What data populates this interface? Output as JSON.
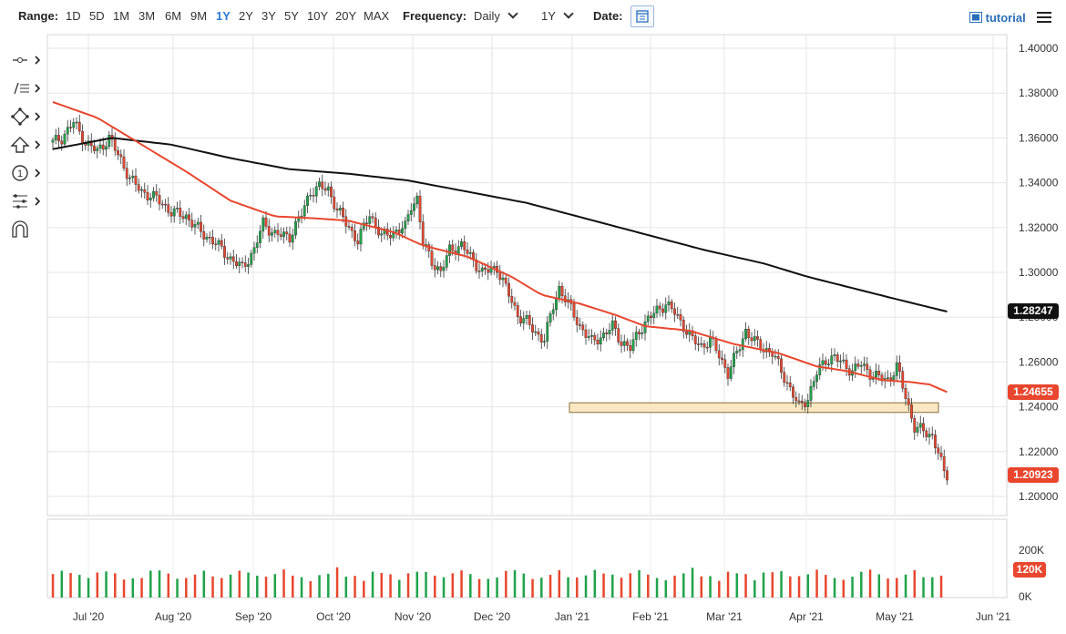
{
  "toolbar": {
    "range_label": "Range:",
    "ranges": [
      "1D",
      "5D",
      "1M",
      "3M",
      "6M",
      "9M",
      "1Y",
      "2Y",
      "3Y",
      "5Y",
      "10Y",
      "20Y",
      "MAX"
    ],
    "active_range": "1Y",
    "frequency_label": "Frequency:",
    "frequency_value": "Daily",
    "period_value": "1Y",
    "date_label": "Date:",
    "tutorial_label": "tutorial"
  },
  "sidebar": {
    "tools": [
      "crosshair-tool",
      "trend-line-tool",
      "shape-tool",
      "arrow-tool",
      "annotation-tool",
      "fibonacci-tool",
      "magnet-tool"
    ]
  },
  "colors": {
    "up": "#1fa34a",
    "down": "#e8462e",
    "ma50": "#e8462e",
    "ma200": "#111111",
    "zone_fill": "#fbe8c2",
    "zone_stroke": "#8a6d3b"
  },
  "price_boxes": {
    "ma200": "1.28247",
    "ma50": "1.24655",
    "last": "1.20923",
    "volume": "120K"
  },
  "chart_data": {
    "type": "candlestick",
    "x_labels": [
      "Jul '20",
      "Aug '20",
      "Sep '20",
      "Oct '20",
      "Nov '20",
      "Dec '20",
      "Jan '21",
      "Feb '21",
      "Mar '21",
      "Apr '21",
      "May '21",
      "Jun '21"
    ],
    "y_ticks": [
      "1.40000",
      "1.38000",
      "1.36000",
      "1.34000",
      "1.32000",
      "1.30000",
      "1.28000",
      "1.26000",
      "1.24000",
      "1.22000",
      "1.20000"
    ],
    "ylim": [
      1.2,
      1.4
    ],
    "volume_ticks": [
      "200K",
      "0K"
    ],
    "zone": [
      1.2375,
      1.2418
    ],
    "close_anchors": [
      [
        0,
        1.358
      ],
      [
        3,
        1.36
      ],
      [
        7,
        1.367
      ],
      [
        11,
        1.358
      ],
      [
        15,
        1.354
      ],
      [
        19,
        1.36
      ],
      [
        23,
        1.35
      ],
      [
        26,
        1.342
      ],
      [
        30,
        1.336
      ],
      [
        35,
        1.333
      ],
      [
        40,
        1.327
      ],
      [
        45,
        1.325
      ],
      [
        50,
        1.318
      ],
      [
        55,
        1.313
      ],
      [
        60,
        1.306
      ],
      [
        64,
        1.302
      ],
      [
        68,
        1.31
      ],
      [
        71,
        1.322
      ],
      [
        75,
        1.317
      ],
      [
        80,
        1.316
      ],
      [
        84,
        1.326
      ],
      [
        87,
        1.336
      ],
      [
        90,
        1.338
      ],
      [
        93,
        1.337
      ],
      [
        96,
        1.328
      ],
      [
        99,
        1.322
      ],
      [
        103,
        1.314
      ],
      [
        107,
        1.326
      ],
      [
        111,
        1.316
      ],
      [
        115,
        1.318
      ],
      [
        119,
        1.32
      ],
      [
        121,
        1.33
      ],
      [
        123,
        1.333
      ],
      [
        125,
        1.313
      ],
      [
        128,
        1.305
      ],
      [
        131,
        1.3
      ],
      [
        134,
        1.31
      ],
      [
        138,
        1.312
      ],
      [
        141,
        1.307
      ],
      [
        145,
        1.3
      ],
      [
        150,
        1.302
      ],
      [
        154,
        1.29
      ],
      [
        157,
        1.281
      ],
      [
        160,
        1.278
      ],
      [
        163,
        1.273
      ],
      [
        166,
        1.27
      ],
      [
        169,
        1.285
      ],
      [
        171,
        1.293
      ],
      [
        174,
        1.286
      ],
      [
        178,
        1.276
      ],
      [
        182,
        1.269
      ],
      [
        186,
        1.272
      ],
      [
        189,
        1.276
      ],
      [
        192,
        1.269
      ],
      [
        195,
        1.266
      ],
      [
        198,
        1.274
      ],
      [
        201,
        1.279
      ],
      [
        204,
        1.283
      ],
      [
        207,
        1.286
      ],
      [
        210,
        1.282
      ],
      [
        213,
        1.276
      ],
      [
        216,
        1.27
      ],
      [
        219,
        1.267
      ],
      [
        222,
        1.27
      ],
      [
        225,
        1.263
      ],
      [
        228,
        1.255
      ],
      [
        231,
        1.264
      ],
      [
        234,
        1.274
      ],
      [
        237,
        1.269
      ],
      [
        240,
        1.266
      ],
      [
        243,
        1.264
      ],
      [
        246,
        1.256
      ],
      [
        249,
        1.248
      ],
      [
        252,
        1.24
      ],
      [
        255,
        1.244
      ],
      [
        258,
        1.255
      ],
      [
        261,
        1.261
      ],
      [
        264,
        1.262
      ],
      [
        267,
        1.259
      ],
      [
        270,
        1.256
      ],
      [
        273,
        1.259
      ],
      [
        276,
        1.255
      ],
      [
        279,
        1.253
      ],
      [
        282,
        1.252
      ],
      [
        285,
        1.258
      ],
      [
        287,
        1.249
      ],
      [
        289,
        1.24
      ],
      [
        291,
        1.231
      ],
      [
        294,
        1.229
      ],
      [
        297,
        1.227
      ],
      [
        299,
        1.22
      ],
      [
        301,
        1.21
      ],
      [
        302,
        1.2092
      ]
    ],
    "ma50_anchors": [
      [
        0,
        1.376
      ],
      [
        15,
        1.369
      ],
      [
        30,
        1.357
      ],
      [
        45,
        1.345
      ],
      [
        60,
        1.332
      ],
      [
        75,
        1.325
      ],
      [
        90,
        1.324
      ],
      [
        100,
        1.323
      ],
      [
        115,
        1.318
      ],
      [
        125,
        1.312
      ],
      [
        140,
        1.307
      ],
      [
        155,
        1.298
      ],
      [
        165,
        1.29
      ],
      [
        178,
        1.286
      ],
      [
        190,
        1.281
      ],
      [
        200,
        1.276
      ],
      [
        215,
        1.274
      ],
      [
        230,
        1.268
      ],
      [
        245,
        1.264
      ],
      [
        258,
        1.258
      ],
      [
        268,
        1.256
      ],
      [
        280,
        1.252
      ],
      [
        290,
        1.251
      ],
      [
        296,
        1.25
      ],
      [
        302,
        1.2466
      ]
    ],
    "ma200_anchors": [
      [
        0,
        1.355
      ],
      [
        20,
        1.36
      ],
      [
        40,
        1.357
      ],
      [
        60,
        1.351
      ],
      [
        80,
        1.346
      ],
      [
        100,
        1.344
      ],
      [
        120,
        1.341
      ],
      [
        140,
        1.336
      ],
      [
        160,
        1.331
      ],
      [
        180,
        1.324
      ],
      [
        200,
        1.317
      ],
      [
        220,
        1.31
      ],
      [
        240,
        1.304
      ],
      [
        255,
        1.298
      ],
      [
        270,
        1.293
      ],
      [
        285,
        1.288
      ],
      [
        302,
        1.2825
      ]
    ],
    "volume_pattern": [
      90,
      102,
      96,
      85,
      78,
      92,
      105,
      88,
      74,
      68,
      81,
      97,
      110,
      86,
      77,
      70,
      93,
      99,
      84,
      72
    ]
  }
}
